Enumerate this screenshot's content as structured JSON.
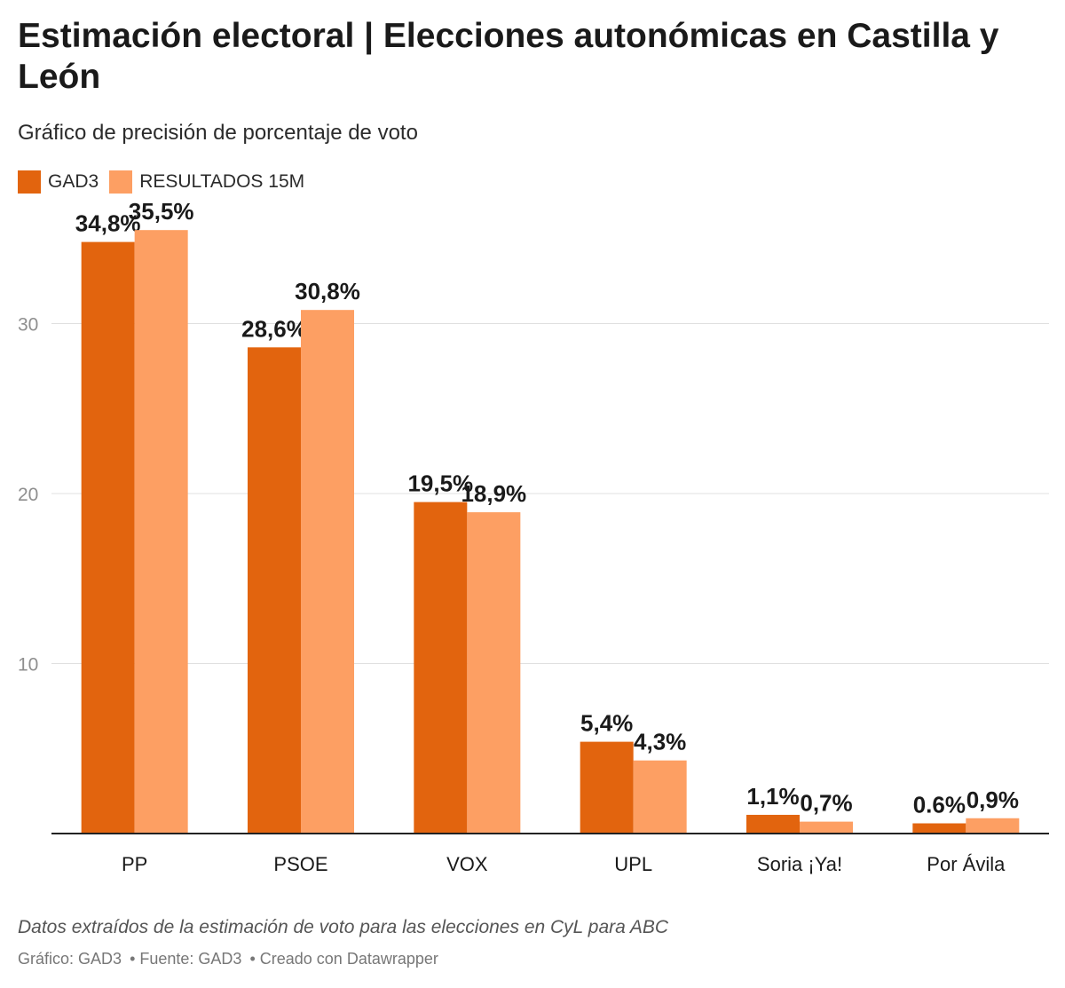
{
  "header": {
    "title": "Estimación electoral | Elecciones autonómicas en Castilla y León",
    "subtitle": "Gráfico de precisión de porcentaje de voto"
  },
  "colors": {
    "gad3": "#e2640e",
    "resultados": "#fd9f63",
    "grid": "#e0e0e0",
    "axis": "#222222"
  },
  "chart_data": {
    "type": "bar",
    "title": "Estimación electoral | Elecciones autonómicas en Castilla y León",
    "subtitle": "Gráfico de precisión de porcentaje de voto",
    "categories": [
      "PP",
      "PSOE",
      "VOX",
      "UPL",
      "Soria ¡Ya!",
      "Por Ávila"
    ],
    "series": [
      {
        "name": "GAD3",
        "values": [
          34.8,
          28.6,
          19.5,
          5.4,
          1.1,
          0.6
        ],
        "labels": [
          "34,8%",
          "28,6%",
          "19,5%",
          "5,4%",
          "1,1%",
          "0.6%"
        ]
      },
      {
        "name": "RESULTADOS 15M",
        "values": [
          35.5,
          30.8,
          18.9,
          4.3,
          0.7,
          0.9
        ],
        "labels": [
          "35,5%",
          "30,8%",
          "18,9%",
          "4,3%",
          "0,7%",
          "0,9%"
        ]
      }
    ],
    "yticks": [
      10,
      20,
      30
    ],
    "ytick_labels": [
      "10",
      "20",
      "30"
    ],
    "ylim": [
      0,
      36
    ],
    "xlabel": "",
    "ylabel": "",
    "grid": true,
    "legend": "top-left"
  },
  "footer": {
    "notes": "Datos extraídos de la estimación de voto para las elecciones en CyL para ABC",
    "credit_chart": "Gráfico: GAD3",
    "credit_source": "• Fuente: GAD3",
    "credit_tool": "• Creado con Datawrapper"
  }
}
